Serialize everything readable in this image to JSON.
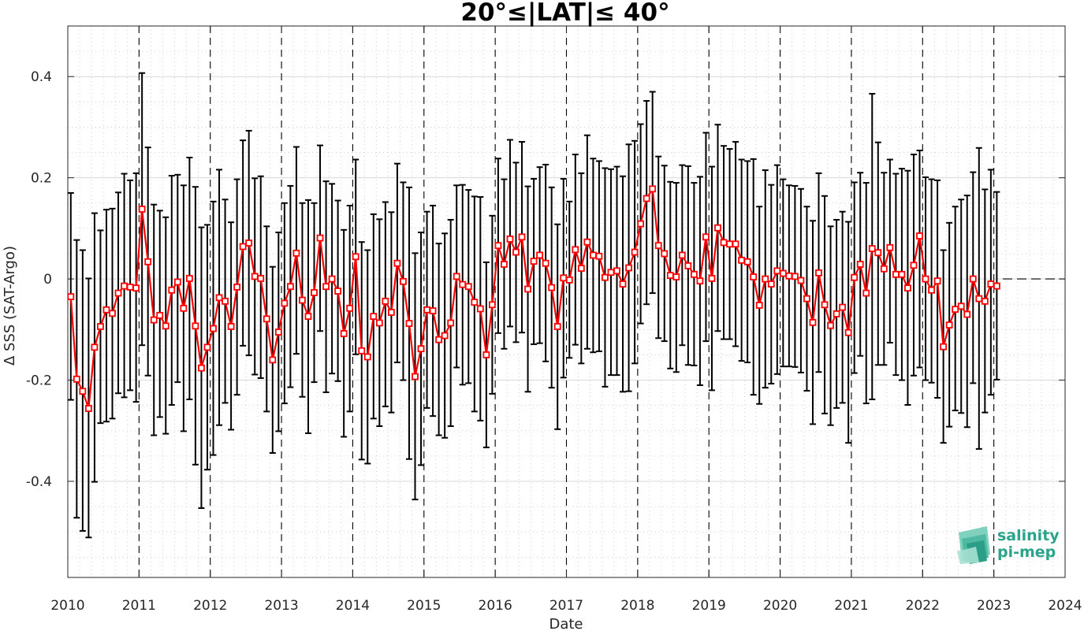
{
  "chart_data": {
    "type": "line",
    "title": "20°≤|LAT|≤ 40°",
    "xlabel": "Date",
    "ylabel": "Δ SSS (SAT-Argo)",
    "xlim": [
      2010.0,
      2024.0
    ],
    "ylim": [
      -0.59,
      0.5
    ],
    "xticks": [
      2010,
      2011,
      2012,
      2013,
      2014,
      2015,
      2016,
      2017,
      2018,
      2019,
      2020,
      2021,
      2022,
      2023,
      2024
    ],
    "xtick_labels": [
      "2010",
      "2011",
      "2012",
      "2013",
      "2014",
      "2015",
      "2016",
      "2017",
      "2018",
      "2019",
      "2020",
      "2021",
      "2022",
      "2023",
      "2024"
    ],
    "yticks": [
      -0.4,
      -0.2,
      0,
      0.2,
      0.4
    ],
    "ytick_labels": [
      "-0.4",
      "-0.2",
      "0",
      "0.2",
      "0.4"
    ],
    "grid": true,
    "year_boundaries_dashed": true,
    "zero_reference_dashed": true,
    "colors": {
      "series": "#ff0000",
      "errorbar": "#000000",
      "grid": "#c8c8c8"
    },
    "series": [
      {
        "x_start": 2010.042,
        "x_step": 0.08333,
        "mean": [
          -0.035,
          -0.198,
          -0.222,
          -0.256,
          -0.135,
          -0.094,
          -0.061,
          -0.068,
          -0.028,
          -0.014,
          -0.016,
          -0.018,
          0.138,
          0.034,
          -0.081,
          -0.072,
          -0.093,
          -0.022,
          -0.006,
          -0.058,
          0.001,
          -0.093,
          -0.176,
          -0.135,
          -0.098,
          -0.037,
          -0.044,
          -0.094,
          -0.016,
          0.064,
          0.071,
          0.005,
          0.001,
          -0.079,
          -0.16,
          -0.105,
          -0.048,
          -0.015,
          0.051,
          -0.042,
          -0.074,
          -0.027,
          0.081,
          -0.015,
          0.0,
          -0.024,
          -0.108,
          -0.058,
          0.044,
          -0.142,
          -0.154,
          -0.074,
          -0.087,
          -0.044,
          -0.066,
          0.031,
          -0.005,
          -0.088,
          -0.193,
          -0.138,
          -0.061,
          -0.063,
          -0.12,
          -0.112,
          -0.087,
          0.005,
          -0.011,
          -0.015,
          -0.046,
          -0.059,
          -0.15,
          -0.051,
          0.066,
          0.029,
          0.079,
          0.053,
          0.083,
          -0.02,
          0.035,
          0.047,
          0.031,
          -0.017,
          -0.094,
          0.002,
          -0.002,
          0.058,
          0.021,
          0.073,
          0.047,
          0.045,
          0.003,
          0.013,
          0.016,
          -0.01,
          0.022,
          0.053,
          0.109,
          0.159,
          0.178,
          0.066,
          0.05,
          0.007,
          0.004,
          0.047,
          0.026,
          0.009,
          -0.004,
          0.083,
          0.001,
          0.101,
          0.072,
          0.069,
          0.069,
          0.037,
          0.034,
          0.004,
          -0.052,
          0.0,
          -0.01,
          0.016,
          0.011,
          0.006,
          0.005,
          -0.003,
          -0.039,
          -0.086,
          0.012,
          -0.051,
          -0.092,
          -0.069,
          -0.056,
          -0.106,
          0.003,
          0.029,
          -0.028,
          0.06,
          0.052,
          0.02,
          0.062,
          0.009,
          0.009,
          -0.018,
          0.027,
          0.085,
          0.0,
          -0.022,
          -0.004,
          -0.134,
          -0.091,
          -0.06,
          -0.054,
          -0.07,
          0.0,
          -0.039,
          -0.044,
          -0.01,
          -0.014
        ],
        "lower": [
          -0.239,
          -0.472,
          -0.498,
          -0.511,
          -0.401,
          -0.285,
          -0.282,
          -0.276,
          -0.226,
          -0.234,
          -0.22,
          -0.243,
          -0.131,
          -0.191,
          -0.309,
          -0.273,
          -0.306,
          -0.249,
          -0.204,
          -0.301,
          -0.238,
          -0.367,
          -0.453,
          -0.377,
          -0.348,
          -0.289,
          -0.245,
          -0.298,
          -0.229,
          -0.132,
          -0.151,
          -0.189,
          -0.196,
          -0.262,
          -0.344,
          -0.301,
          -0.246,
          -0.214,
          -0.148,
          -0.233,
          -0.305,
          -0.204,
          -0.103,
          -0.224,
          -0.187,
          -0.202,
          -0.312,
          -0.262,
          -0.149,
          -0.357,
          -0.365,
          -0.276,
          -0.291,
          -0.252,
          -0.264,
          -0.165,
          -0.2,
          -0.356,
          -0.436,
          -0.368,
          -0.255,
          -0.271,
          -0.309,
          -0.314,
          -0.291,
          -0.175,
          -0.209,
          -0.206,
          -0.262,
          -0.28,
          -0.333,
          -0.227,
          -0.107,
          -0.138,
          -0.094,
          -0.125,
          -0.106,
          -0.223,
          -0.129,
          -0.127,
          -0.163,
          -0.215,
          -0.297,
          -0.195,
          -0.156,
          -0.13,
          -0.167,
          -0.138,
          -0.145,
          -0.143,
          -0.213,
          -0.19,
          -0.19,
          -0.223,
          -0.222,
          -0.167,
          -0.088,
          -0.05,
          -0.028,
          -0.117,
          -0.123,
          -0.177,
          -0.184,
          -0.131,
          -0.17,
          -0.171,
          -0.21,
          -0.123,
          -0.22,
          -0.103,
          -0.119,
          -0.119,
          -0.133,
          -0.162,
          -0.165,
          -0.229,
          -0.247,
          -0.215,
          -0.207,
          -0.188,
          -0.173,
          -0.173,
          -0.174,
          -0.185,
          -0.221,
          -0.287,
          -0.184,
          -0.266,
          -0.289,
          -0.255,
          -0.245,
          -0.324,
          -0.186,
          -0.152,
          -0.246,
          -0.238,
          -0.17,
          -0.17,
          -0.126,
          -0.19,
          -0.2,
          -0.249,
          -0.191,
          -0.175,
          -0.2,
          -0.205,
          -0.235,
          -0.324,
          -0.292,
          -0.26,
          -0.265,
          -0.293,
          -0.206,
          -0.336,
          -0.264,
          -0.229,
          -0.199
        ],
        "upper": [
          0.17,
          0.077,
          0.057,
          0.001,
          0.13,
          0.096,
          0.137,
          0.139,
          0.171,
          0.208,
          0.195,
          0.209,
          0.407,
          0.26,
          0.147,
          0.135,
          0.122,
          0.204,
          0.206,
          0.185,
          0.24,
          0.182,
          0.102,
          0.107,
          0.153,
          0.216,
          0.157,
          0.112,
          0.197,
          0.274,
          0.293,
          0.199,
          0.203,
          0.104,
          0.024,
          0.092,
          0.15,
          0.184,
          0.261,
          0.15,
          0.156,
          0.15,
          0.264,
          0.193,
          0.188,
          0.155,
          0.097,
          0.145,
          0.236,
          0.073,
          0.057,
          0.128,
          0.118,
          0.152,
          0.132,
          0.228,
          0.191,
          0.181,
          0.051,
          0.092,
          0.133,
          0.145,
          0.07,
          0.09,
          0.117,
          0.185,
          0.186,
          0.176,
          0.163,
          0.162,
          0.033,
          0.125,
          0.238,
          0.197,
          0.275,
          0.23,
          0.271,
          0.183,
          0.198,
          0.221,
          0.226,
          0.181,
          0.108,
          0.198,
          0.153,
          0.246,
          0.209,
          0.284,
          0.238,
          0.233,
          0.219,
          0.217,
          0.222,
          0.203,
          0.266,
          0.273,
          0.306,
          0.352,
          0.37,
          0.242,
          0.224,
          0.192,
          0.19,
          0.225,
          0.223,
          0.19,
          0.202,
          0.289,
          0.222,
          0.305,
          0.263,
          0.257,
          0.271,
          0.236,
          0.233,
          0.237,
          0.143,
          0.215,
          0.186,
          0.225,
          0.197,
          0.185,
          0.184,
          0.178,
          0.143,
          0.115,
          0.209,
          0.164,
          0.104,
          0.117,
          0.133,
          0.113,
          0.191,
          0.21,
          0.19,
          0.366,
          0.27,
          0.21,
          0.236,
          0.208,
          0.218,
          0.214,
          0.246,
          0.254,
          0.201,
          0.197,
          0.195,
          0.057,
          0.111,
          0.143,
          0.157,
          0.165,
          0.211,
          0.259,
          0.177,
          0.216,
          0.172
        ]
      }
    ]
  },
  "logo": {
    "line1": "salinity",
    "line2": "pi-mep"
  }
}
